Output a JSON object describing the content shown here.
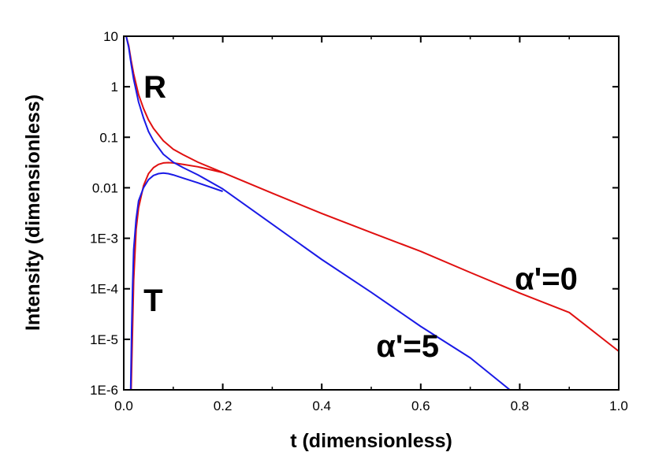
{
  "chart_data": {
    "type": "line",
    "title": "",
    "xlabel": "t (dimensionless)",
    "ylabel": "Intensity (dimensionless)",
    "xlim": [
      0.0,
      1.0
    ],
    "ylim": [
      1e-06,
      10
    ],
    "yscale": "log",
    "grid": false,
    "legend": "none",
    "x_ticks": [
      {
        "value": 0.0,
        "label": "0.0"
      },
      {
        "value": 0.2,
        "label": "0.2"
      },
      {
        "value": 0.4,
        "label": "0.4"
      },
      {
        "value": 0.6,
        "label": "0.6"
      },
      {
        "value": 0.8,
        "label": "0.8"
      },
      {
        "value": 1.0,
        "label": "1.0"
      }
    ],
    "y_ticks": [
      {
        "value": 10,
        "label": "10"
      },
      {
        "value": 1,
        "label": "1"
      },
      {
        "value": 0.1,
        "label": "0.1"
      },
      {
        "value": 0.01,
        "label": "0.01"
      },
      {
        "value": 0.001,
        "label": "1E-3"
      },
      {
        "value": 0.0001,
        "label": "1E-4"
      },
      {
        "value": 1e-05,
        "label": "1E-5"
      },
      {
        "value": 1e-06,
        "label": "1E-6"
      }
    ],
    "series": [
      {
        "color": "#e01010",
        "x": [
          0.005,
          0.01,
          0.015,
          0.02,
          0.03,
          0.04,
          0.05,
          0.06,
          0.08,
          0.1,
          0.12,
          0.15,
          0.2,
          0.3,
          0.4,
          0.5,
          0.6,
          0.7,
          0.8,
          0.9,
          1.0
        ],
        "y": [
          10,
          6.5,
          3.3,
          1.8,
          0.7,
          0.37,
          0.22,
          0.15,
          0.085,
          0.058,
          0.045,
          0.032,
          0.02,
          0.0078,
          0.0031,
          0.0013,
          0.00055,
          0.00021,
          8.2e-05,
          3.4e-05,
          5.8e-06
        ]
      },
      {
        "color": "#e01010",
        "x": [
          0.015,
          0.018,
          0.02,
          0.025,
          0.03,
          0.04,
          0.05,
          0.06,
          0.07,
          0.08,
          0.09,
          0.1,
          0.12,
          0.15,
          0.2
        ],
        "y": [
          1e-06,
          2e-05,
          0.00015,
          0.0015,
          0.004,
          0.011,
          0.019,
          0.025,
          0.029,
          0.031,
          0.0315,
          0.031,
          0.029,
          0.026,
          0.02
        ]
      },
      {
        "color": "#1a1ae6",
        "x": [
          0.005,
          0.01,
          0.015,
          0.02,
          0.03,
          0.04,
          0.05,
          0.06,
          0.08,
          0.1,
          0.12,
          0.15,
          0.2,
          0.3,
          0.4,
          0.5,
          0.6,
          0.7,
          0.78
        ],
        "y": [
          10,
          6.0,
          2.8,
          1.4,
          0.5,
          0.24,
          0.13,
          0.085,
          0.046,
          0.032,
          0.025,
          0.018,
          0.0095,
          0.0019,
          0.00038,
          8.5e-05,
          1.8e-05,
          4.3e-06,
          1e-06
        ]
      },
      {
        "color": "#1a1ae6",
        "x": [
          0.014,
          0.016,
          0.018,
          0.02,
          0.025,
          0.03,
          0.04,
          0.05,
          0.06,
          0.07,
          0.08,
          0.09,
          0.1,
          0.12,
          0.15,
          0.2
        ],
        "y": [
          1e-06,
          1.5e-05,
          0.00012,
          0.0006,
          0.0024,
          0.0055,
          0.01,
          0.0145,
          0.0175,
          0.019,
          0.0195,
          0.019,
          0.018,
          0.0155,
          0.0125,
          0.0085
        ]
      }
    ],
    "annotations": [
      {
        "text": "R",
        "x": 0.04,
        "y": 1.0
      },
      {
        "text": "T",
        "x": 0.04,
        "y": 6e-05
      },
      {
        "text": "α'=0",
        "x": 0.79,
        "y": 0.00016
      },
      {
        "text": "α'=5",
        "x": 0.51,
        "y": 7.5e-06
      }
    ]
  }
}
